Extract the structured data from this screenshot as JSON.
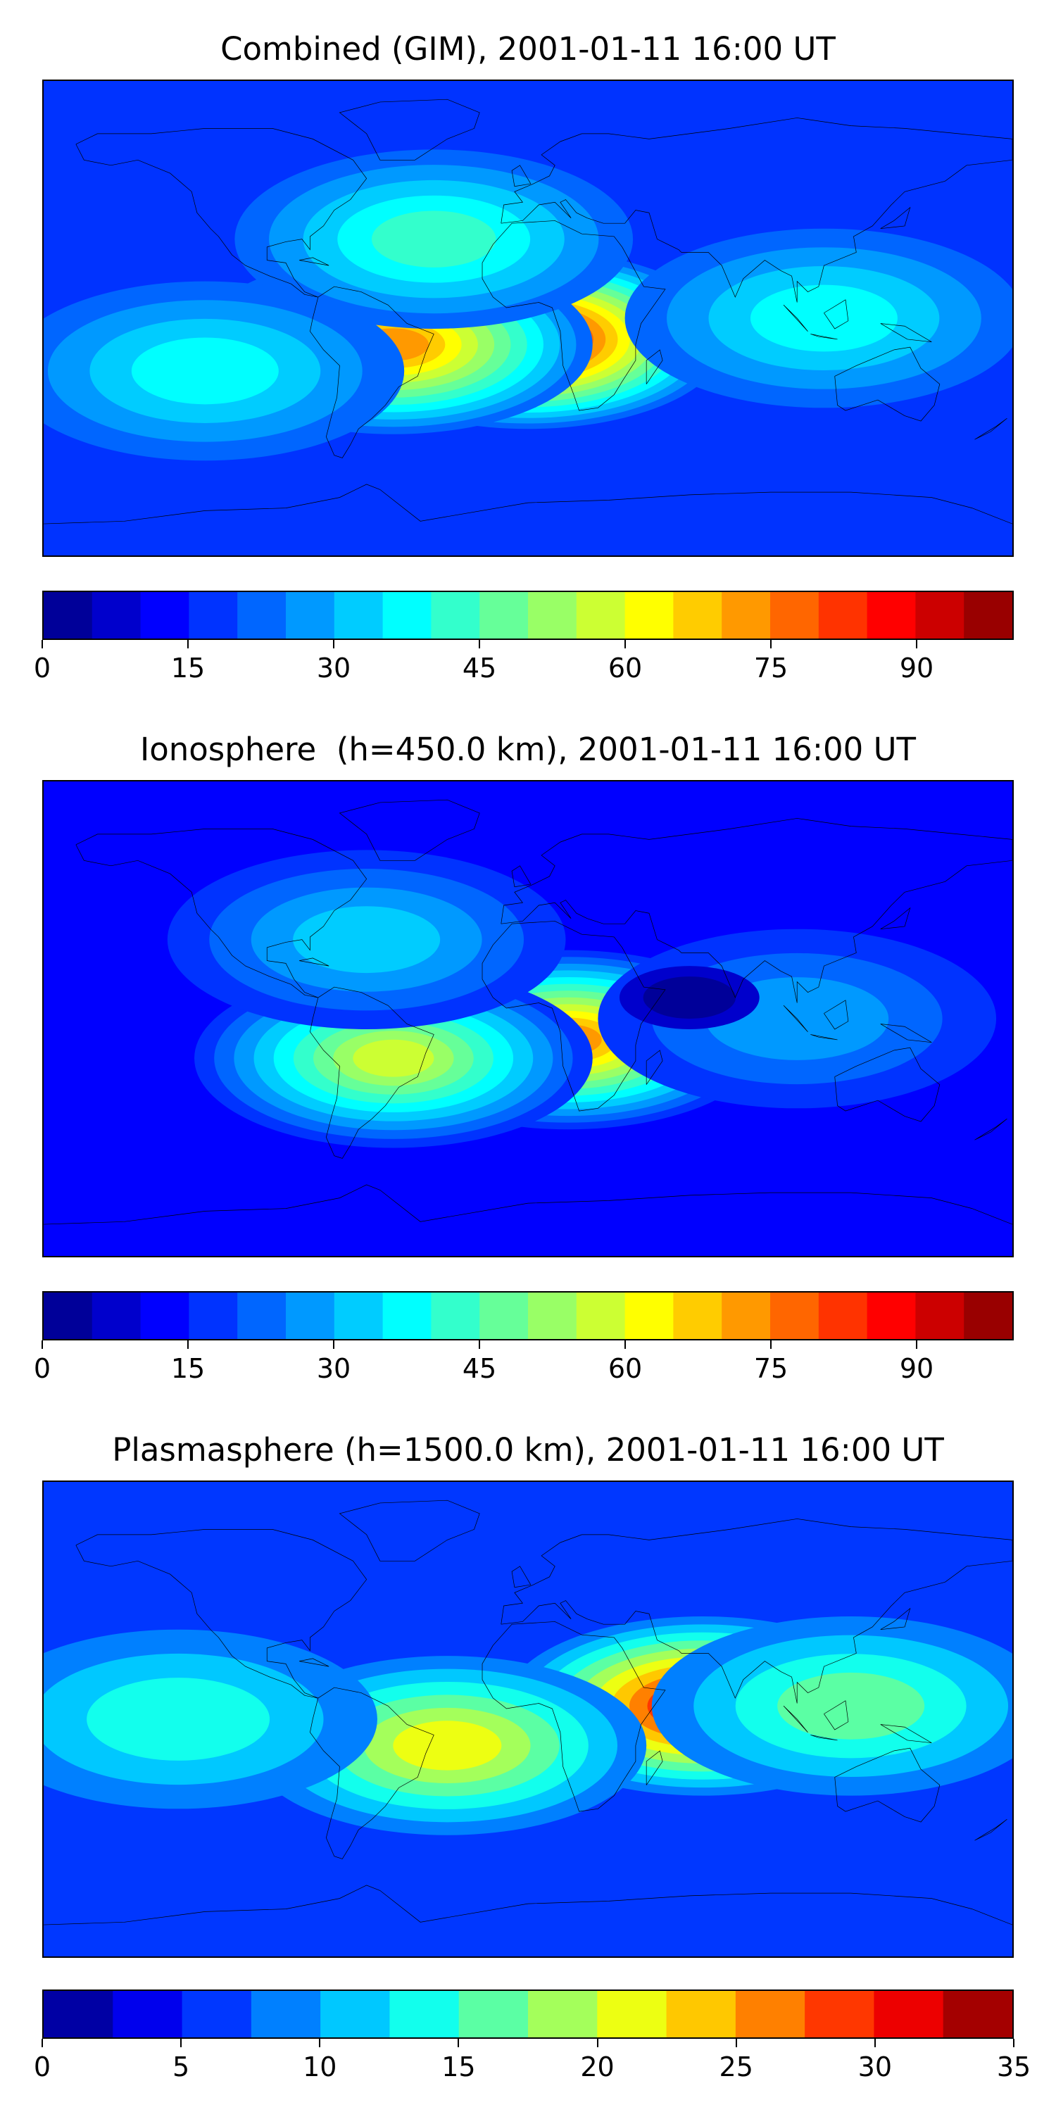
{
  "chart_data": [
    {
      "type": "heatmap",
      "subtype": "filled-contour world map",
      "title": "Combined (GIM), 2001-01-11 16:00 UT",
      "colormap": "jet",
      "colorbar": {
        "range": [
          0,
          100
        ],
        "step": 5,
        "tick_labels": [
          "0",
          "15",
          "30",
          "45",
          "60",
          "75",
          "90"
        ]
      },
      "background_value": 18,
      "peaks": [
        {
          "lon": 0,
          "lat": -8,
          "value": 90
        },
        {
          "lon": -50,
          "lat": -10,
          "value": 72
        },
        {
          "lon": -35,
          "lat": 30,
          "value": 42
        },
        {
          "lon": 110,
          "lat": 0,
          "value": 35
        },
        {
          "lon": -120,
          "lat": -20,
          "value": 38
        }
      ]
    },
    {
      "type": "heatmap",
      "subtype": "filled-contour world map",
      "title": "Ionosphere  (h=450.0 km), 2001-01-11 16:00 UT",
      "colormap": "jet",
      "colorbar": {
        "range": [
          0,
          100
        ],
        "step": 5,
        "tick_labels": [
          "0",
          "15",
          "30",
          "45",
          "60",
          "75",
          "90"
        ]
      },
      "background_value": 12,
      "peaks": [
        {
          "lon": 15,
          "lat": -8,
          "value": 74
        },
        {
          "lon": -50,
          "lat": -15,
          "value": 58
        },
        {
          "lon": -60,
          "lat": 30,
          "value": 34
        },
        {
          "lon": 100,
          "lat": 0,
          "value": 28
        },
        {
          "lon": 60,
          "lat": 8,
          "value": 4
        }
      ]
    },
    {
      "type": "heatmap",
      "subtype": "filled-contour world map",
      "title": "Plasmasphere (h=1500.0 km), 2001-01-11 16:00 UT",
      "colormap": "jet",
      "colorbar": {
        "range": [
          0,
          35
        ],
        "step": 2.5,
        "tick_labels": [
          "0",
          "5",
          "10",
          "15",
          "20",
          "25",
          "30",
          "35"
        ]
      },
      "background_value": 5,
      "peaks": [
        {
          "lon": 65,
          "lat": 5,
          "value": 31
        },
        {
          "lon": -30,
          "lat": -10,
          "value": 21
        },
        {
          "lon": 120,
          "lat": 5,
          "value": 17
        },
        {
          "lon": -130,
          "lat": 0,
          "value": 14
        }
      ]
    }
  ],
  "colors": {
    "jet_stops": [
      "#00007f",
      "#0000ff",
      "#007fff",
      "#00ffff",
      "#7fff7f",
      "#ffff00",
      "#ff7f00",
      "#ff0000",
      "#7f0000"
    ],
    "coastline": "#000000"
  }
}
